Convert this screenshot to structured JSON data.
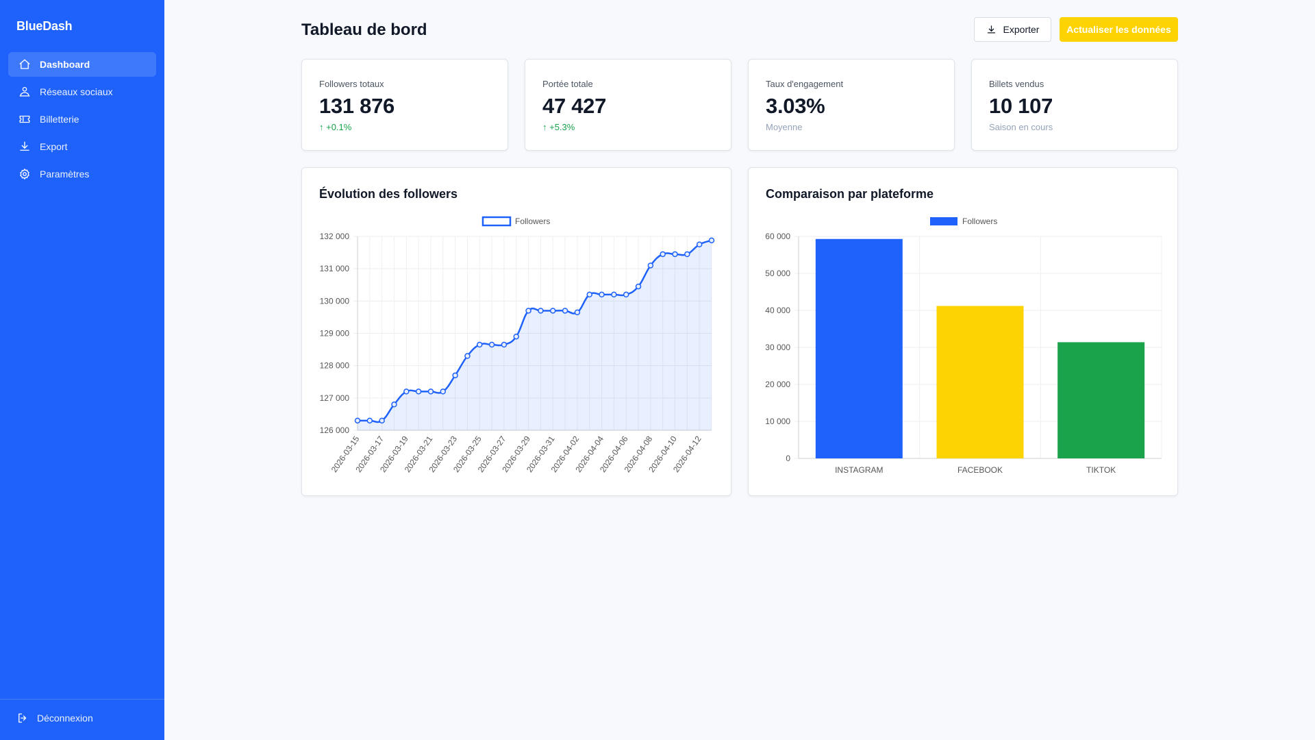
{
  "brand": "BlueDash",
  "sidebar": {
    "items": [
      {
        "label": "Dashboard",
        "icon": "home-icon"
      },
      {
        "label": "Réseaux sociaux",
        "icon": "users-icon"
      },
      {
        "label": "Billetterie",
        "icon": "ticket-icon"
      },
      {
        "label": "Export",
        "icon": "download-icon"
      },
      {
        "label": "Paramètres",
        "icon": "gear-icon"
      }
    ],
    "logout_label": "Déconnexion"
  },
  "header": {
    "title": "Tableau de bord",
    "export_label": "Exporter",
    "refresh_label": "Actualiser les données"
  },
  "kpis": [
    {
      "label": "Followers totaux",
      "value": "131 876",
      "sub": "↑ +0.1%"
    },
    {
      "label": "Portée totale",
      "value": "47 427",
      "sub": "↑ +5.3%"
    },
    {
      "label": "Taux d'engagement",
      "value": "3.03%",
      "sub": "Moyenne"
    },
    {
      "label": "Billets vendus",
      "value": "10 107",
      "sub": "Saison en cours"
    }
  ],
  "colors": {
    "sidebar": "#1f62fb",
    "accent_yellow": "#fdd303",
    "up_green": "#16a34a",
    "line": "#1f62fb",
    "bar_instagram": "#1f62fb",
    "bar_facebook": "#fdd303",
    "bar_tiktok": "#1aa34a"
  },
  "chart_data": [
    {
      "type": "line",
      "title": "Évolution des followers",
      "legend": [
        "Followers"
      ],
      "x": [
        "2026-03-15",
        "2026-03-16",
        "2026-03-17",
        "2026-03-18",
        "2026-03-19",
        "2026-03-20",
        "2026-03-21",
        "2026-03-22",
        "2026-03-23",
        "2026-03-24",
        "2026-03-25",
        "2026-03-26",
        "2026-03-27",
        "2026-03-28",
        "2026-03-29",
        "2026-03-30",
        "2026-03-31",
        "2026-04-01",
        "2026-04-02",
        "2026-04-03",
        "2026-04-04",
        "2026-04-05",
        "2026-04-06",
        "2026-04-07",
        "2026-04-08",
        "2026-04-09",
        "2026-04-10",
        "2026-04-11",
        "2026-04-12",
        "2026-04-13"
      ],
      "x_tick_labels": [
        "2026-03-15",
        "2026-03-17",
        "2026-03-19",
        "2026-03-21",
        "2026-03-23",
        "2026-03-25",
        "2026-03-27",
        "2026-03-29",
        "2026-03-31",
        "2026-04-02",
        "2026-04-04",
        "2026-04-06",
        "2026-04-08",
        "2026-04-10",
        "2026-04-12"
      ],
      "series": [
        {
          "name": "Followers",
          "values": [
            126300,
            126300,
            126300,
            126800,
            127200,
            127200,
            127200,
            127200,
            127700,
            128300,
            128650,
            128650,
            128650,
            128900,
            129700,
            129700,
            129700,
            129700,
            129650,
            130200,
            130200,
            130200,
            130200,
            130450,
            131100,
            131450,
            131450,
            131450,
            131750,
            131876
          ]
        }
      ],
      "ylim": [
        126000,
        132000
      ],
      "y_ticks": [
        "126 000",
        "127 000",
        "128 000",
        "129 000",
        "130 000",
        "131 000",
        "132 000"
      ],
      "grid": true,
      "legend_position": "top"
    },
    {
      "type": "bar",
      "title": "Comparaison par plateforme",
      "legend": [
        "Followers"
      ],
      "categories": [
        "INSTAGRAM",
        "FACEBOOK",
        "TIKTOK"
      ],
      "series": [
        {
          "name": "Followers",
          "values": [
            59300,
            41200,
            31400
          ]
        }
      ],
      "ylim": [
        0,
        60000
      ],
      "y_ticks": [
        "0",
        "10 000",
        "20 000",
        "30 000",
        "40 000",
        "50 000",
        "60 000"
      ],
      "grid": true,
      "legend_position": "top"
    }
  ]
}
